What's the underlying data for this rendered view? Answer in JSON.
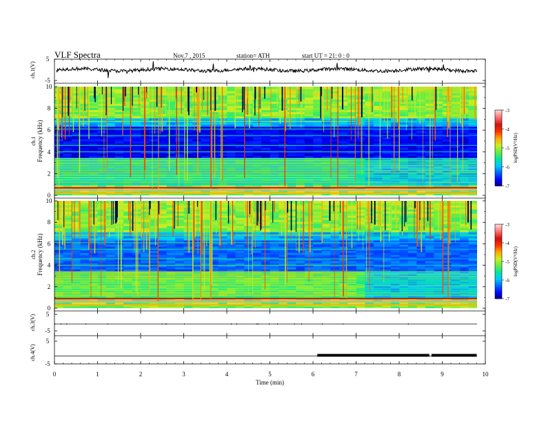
{
  "header": {
    "title": "VLF Spectra",
    "date": "Nov.7 , 2015",
    "station": "station= ATH",
    "start": "start UT = 21: 0 : 0"
  },
  "colorbar": {
    "label": "logPSD(V²/Hz)",
    "ticks": [
      "-3",
      "-4",
      "-5",
      "-6",
      "-7"
    ],
    "colors": [
      "#000080",
      "#0000ff",
      "#0066ff",
      "#00c8ff",
      "#00e6a0",
      "#66ee44",
      "#ccee22",
      "#ffaa00",
      "#ff3300",
      "#cc1111",
      "#ff6a6a",
      "#ffd0d0"
    ]
  },
  "chart_data": [
    {
      "type": "line",
      "panel": "ch1",
      "ylabel": "ch.1(V)",
      "yticks": [
        "5",
        "-5"
      ],
      "ylim": [
        -5,
        5
      ],
      "xlim": [
        0,
        10
      ],
      "baseline_v": 0,
      "trace_color": "#000000"
    },
    {
      "type": "heatmap",
      "panel": "spec1",
      "ylabel": "ch.1 Frequency (kHz)",
      "yticks": [
        "0",
        "2",
        "4",
        "6",
        "8",
        "10"
      ],
      "ylim": [
        0,
        10
      ],
      "xlim": [
        0,
        9.8
      ],
      "color_scale": [
        -7,
        -3
      ],
      "strong_lines_khz": [
        0.2,
        0.5,
        0.7
      ],
      "background_change_min": 7.0
    },
    {
      "type": "heatmap",
      "panel": "spec2",
      "ylabel": "ch.2 Frequency (kHz)",
      "yticks": [
        "0",
        "2",
        "4",
        "6",
        "8",
        "10"
      ],
      "ylim": [
        0,
        10
      ],
      "xlim": [
        0,
        9.8
      ],
      "color_scale": [
        -7,
        -3
      ],
      "strong_lines_khz": [
        0.3,
        0.6,
        0.9
      ],
      "background_change_min": 7.0
    },
    {
      "type": "line",
      "panel": "ch3",
      "ylabel": "ch.3(V)",
      "yticks": [
        "5",
        "-5"
      ],
      "ylim": [
        -5,
        5
      ],
      "xlim": [
        0,
        9.8
      ],
      "baseline_v": 0
    },
    {
      "type": "line",
      "panel": "ch4",
      "ylabel": "ch.4(V)",
      "yticks": [
        "5",
        "-5"
      ],
      "ylim": [
        -5,
        5
      ],
      "xlim": [
        0,
        9.8
      ],
      "baseline_v": 0,
      "thick_segments_min": [
        [
          6.1,
          8.7
        ],
        [
          8.75,
          9.8
        ]
      ]
    }
  ],
  "xaxis": {
    "label": "Time (min)",
    "ticks": [
      "0",
      "1",
      "2",
      "3",
      "4",
      "5",
      "6",
      "7",
      "8",
      "9",
      "10"
    ],
    "xlim": [
      0,
      10
    ]
  }
}
